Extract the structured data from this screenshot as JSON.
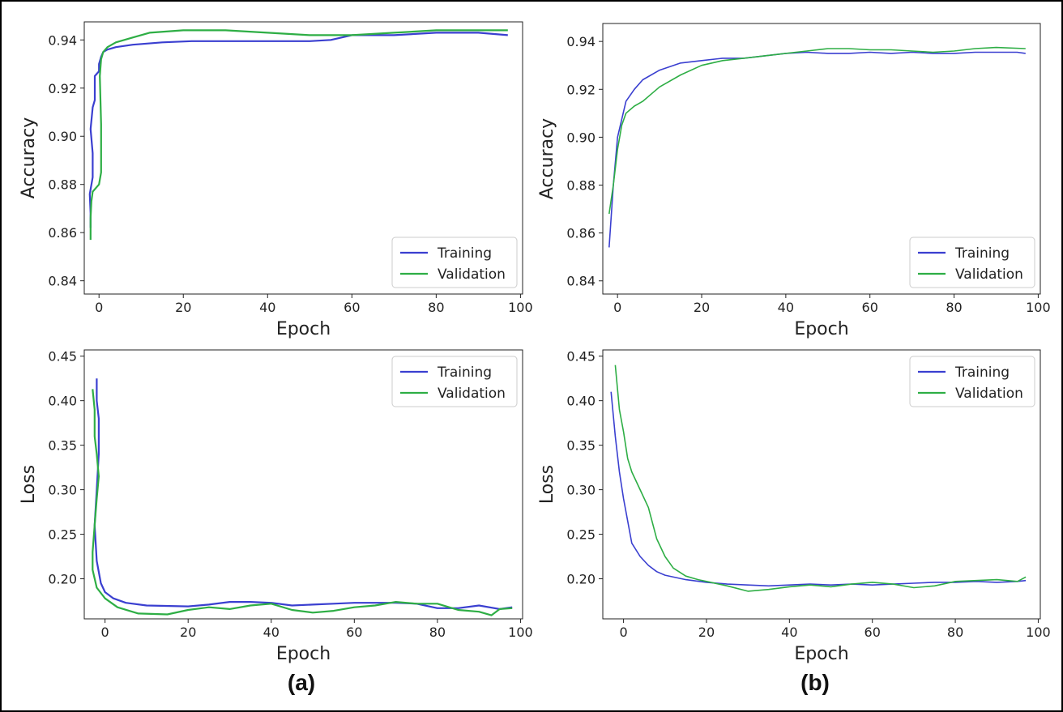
{
  "colors": {
    "training": "#3a3fd0",
    "validation": "#2eae45",
    "axis": "#222222",
    "text": "#222222"
  },
  "panel_labels": [
    "(a)",
    "(b)"
  ],
  "chart_data": [
    {
      "id": "a-accuracy",
      "type": "line",
      "xlabel": "Epoch",
      "ylabel": "Accuracy",
      "xlim": [
        -3.5,
        100.5
      ],
      "ylim": [
        0.8345,
        0.9475
      ],
      "xticks": [
        0,
        20,
        40,
        60,
        80,
        100
      ],
      "xtick_labels": [
        "0",
        "20",
        "40",
        "60",
        "80",
        "100"
      ],
      "yticks": [
        0.84,
        0.86,
        0.88,
        0.9,
        0.92,
        0.94
      ],
      "ytick_labels": [
        "0.84",
        "0.86",
        "0.88",
        "0.90",
        "0.92",
        "0.94"
      ],
      "legend": [
        "Training",
        "Validation"
      ],
      "legend_position": "lower-right",
      "series": [
        {
          "name": "Training",
          "color": "training",
          "x": [
            -2,
            -2,
            -2.2,
            -1.5,
            -1.5,
            -2,
            -1.5,
            -1,
            -1,
            0,
            0,
            0.5,
            1,
            2,
            4,
            8,
            15,
            22,
            40,
            50,
            55,
            60,
            70,
            80,
            90,
            97
          ],
          "y": [
            0.862,
            0.868,
            0.876,
            0.883,
            0.893,
            0.903,
            0.912,
            0.915,
            0.925,
            0.927,
            0.93,
            0.933,
            0.935,
            0.936,
            0.937,
            0.938,
            0.939,
            0.9395,
            0.9395,
            0.9395,
            0.94,
            0.942,
            0.942,
            0.943,
            0.943,
            0.942
          ]
        },
        {
          "name": "Validation",
          "color": "validation",
          "x": [
            -2,
            -2,
            -1.8,
            -1.5,
            -0.5,
            0,
            0.5,
            0.5,
            0.2,
            0.5,
            1,
            2,
            4,
            8,
            12,
            20,
            30,
            40,
            50,
            60,
            70,
            80,
            90,
            97
          ],
          "y": [
            0.857,
            0.866,
            0.873,
            0.877,
            0.879,
            0.88,
            0.885,
            0.905,
            0.925,
            0.932,
            0.935,
            0.937,
            0.939,
            0.941,
            0.943,
            0.944,
            0.944,
            0.943,
            0.942,
            0.942,
            0.943,
            0.944,
            0.944,
            0.944
          ]
        }
      ]
    },
    {
      "id": "b-accuracy",
      "type": "line",
      "xlabel": "Epoch",
      "ylabel": "Accuracy",
      "xlim": [
        -3.5,
        100.5
      ],
      "ylim": [
        0.8345,
        0.9475
      ],
      "xticks": [
        0,
        20,
        40,
        60,
        80,
        100
      ],
      "xtick_labels": [
        "0",
        "20",
        "40",
        "60",
        "80",
        "100"
      ],
      "yticks": [
        0.84,
        0.86,
        0.88,
        0.9,
        0.92,
        0.94
      ],
      "ytick_labels": [
        "0.84",
        "0.86",
        "0.88",
        "0.90",
        "0.92",
        "0.94"
      ],
      "legend": [
        "Training",
        "Validation"
      ],
      "legend_position": "lower-right",
      "series": [
        {
          "name": "Training",
          "color": "training",
          "x": [
            -2,
            -1,
            0,
            2,
            4,
            6,
            10,
            15,
            20,
            25,
            30,
            35,
            40,
            45,
            50,
            55,
            60,
            65,
            70,
            75,
            80,
            85,
            90,
            95,
            97
          ],
          "y": [
            0.854,
            0.88,
            0.9,
            0.915,
            0.92,
            0.924,
            0.928,
            0.931,
            0.932,
            0.933,
            0.933,
            0.934,
            0.935,
            0.9355,
            0.935,
            0.935,
            0.9355,
            0.935,
            0.9355,
            0.935,
            0.935,
            0.9355,
            0.9355,
            0.9355,
            0.935
          ]
        },
        {
          "name": "Validation",
          "color": "validation",
          "x": [
            -2,
            -1,
            0,
            1,
            2,
            4,
            6,
            8,
            10,
            15,
            20,
            25,
            30,
            35,
            40,
            45,
            50,
            55,
            60,
            65,
            70,
            75,
            80,
            85,
            90,
            97
          ],
          "y": [
            0.868,
            0.88,
            0.895,
            0.905,
            0.91,
            0.913,
            0.915,
            0.918,
            0.921,
            0.926,
            0.93,
            0.932,
            0.933,
            0.934,
            0.935,
            0.936,
            0.937,
            0.937,
            0.9365,
            0.9365,
            0.936,
            0.9355,
            0.936,
            0.937,
            0.9375,
            0.937
          ]
        }
      ]
    },
    {
      "id": "a-loss",
      "type": "line",
      "xlabel": "Epoch",
      "ylabel": "Loss",
      "xlim": [
        -5,
        100.5
      ],
      "ylim": [
        0.155,
        0.457
      ],
      "xticks": [
        0,
        20,
        40,
        60,
        80,
        100
      ],
      "xtick_labels": [
        "0",
        "20",
        "40",
        "60",
        "80",
        "100"
      ],
      "yticks": [
        0.2,
        0.25,
        0.3,
        0.35,
        0.4,
        0.45
      ],
      "ytick_labels": [
        "0.20",
        "0.25",
        "0.30",
        "0.35",
        "0.40",
        "0.45"
      ],
      "legend": [
        "Training",
        "Validation"
      ],
      "legend_position": "upper-right",
      "series": [
        {
          "name": "Training",
          "color": "training",
          "x": [
            -2,
            -2,
            -1.5,
            -1.5,
            -2,
            -2.5,
            -2,
            -1,
            0,
            2,
            5,
            10,
            20,
            25,
            30,
            35,
            40,
            45,
            50,
            55,
            60,
            65,
            70,
            75,
            80,
            85,
            90,
            95,
            98
          ],
          "y": [
            0.425,
            0.4,
            0.38,
            0.34,
            0.3,
            0.26,
            0.22,
            0.195,
            0.185,
            0.178,
            0.173,
            0.17,
            0.169,
            0.171,
            0.174,
            0.174,
            0.173,
            0.17,
            0.171,
            0.172,
            0.173,
            0.173,
            0.173,
            0.172,
            0.167,
            0.167,
            0.17,
            0.166,
            0.168
          ]
        },
        {
          "name": "Validation",
          "color": "validation",
          "x": [
            -3,
            -2.5,
            -2.5,
            -2,
            -1.5,
            -2,
            -2.5,
            -3,
            -3,
            -2,
            0,
            3,
            8,
            15,
            20,
            25,
            30,
            35,
            40,
            45,
            50,
            55,
            60,
            65,
            70,
            75,
            80,
            85,
            90,
            93,
            95,
            98
          ],
          "y": [
            0.413,
            0.39,
            0.36,
            0.34,
            0.315,
            0.29,
            0.26,
            0.23,
            0.21,
            0.19,
            0.178,
            0.168,
            0.161,
            0.16,
            0.165,
            0.168,
            0.166,
            0.17,
            0.172,
            0.165,
            0.162,
            0.164,
            0.168,
            0.17,
            0.174,
            0.172,
            0.172,
            0.165,
            0.163,
            0.159,
            0.166,
            0.167
          ]
        }
      ]
    },
    {
      "id": "b-loss",
      "type": "line",
      "xlabel": "Epoch",
      "ylabel": "Loss",
      "xlim": [
        -5,
        100.5
      ],
      "ylim": [
        0.155,
        0.457
      ],
      "xticks": [
        0,
        20,
        40,
        60,
        80,
        100
      ],
      "xtick_labels": [
        "0",
        "20",
        "40",
        "60",
        "80",
        "100"
      ],
      "yticks": [
        0.2,
        0.25,
        0.3,
        0.35,
        0.4,
        0.45
      ],
      "ytick_labels": [
        "0.20",
        "0.25",
        "0.30",
        "0.35",
        "0.40",
        "0.45"
      ],
      "legend": [
        "Training",
        "Validation"
      ],
      "legend_position": "upper-right",
      "series": [
        {
          "name": "Training",
          "color": "training",
          "x": [
            -3,
            -2,
            -1,
            0,
            1,
            2,
            4,
            6,
            8,
            10,
            15,
            20,
            25,
            30,
            35,
            40,
            45,
            50,
            55,
            60,
            65,
            70,
            75,
            80,
            85,
            90,
            95,
            97
          ],
          "y": [
            0.41,
            0.36,
            0.32,
            0.29,
            0.265,
            0.24,
            0.225,
            0.215,
            0.208,
            0.204,
            0.199,
            0.196,
            0.194,
            0.193,
            0.192,
            0.193,
            0.194,
            0.193,
            0.194,
            0.193,
            0.194,
            0.195,
            0.196,
            0.196,
            0.197,
            0.196,
            0.197,
            0.198
          ]
        },
        {
          "name": "Validation",
          "color": "validation",
          "x": [
            -2,
            -1,
            0,
            1,
            2,
            4,
            6,
            8,
            10,
            12,
            15,
            18,
            20,
            25,
            30,
            35,
            40,
            45,
            50,
            55,
            60,
            65,
            70,
            75,
            80,
            85,
            90,
            95,
            97
          ],
          "y": [
            0.44,
            0.39,
            0.365,
            0.335,
            0.32,
            0.3,
            0.28,
            0.245,
            0.225,
            0.212,
            0.203,
            0.199,
            0.197,
            0.192,
            0.186,
            0.188,
            0.191,
            0.193,
            0.191,
            0.194,
            0.196,
            0.194,
            0.19,
            0.192,
            0.197,
            0.198,
            0.199,
            0.197,
            0.202
          ]
        }
      ]
    }
  ]
}
